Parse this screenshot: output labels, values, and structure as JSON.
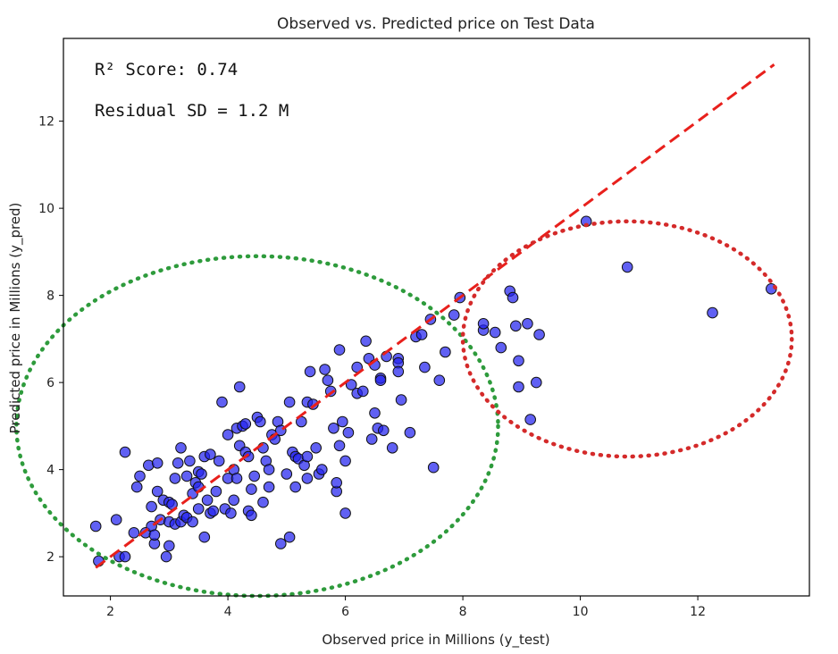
{
  "chart_data": {
    "type": "scatter",
    "title": "Observed vs. Predicted price on Test Data",
    "xlabel": "Observed price in Millions (y_test)",
    "ylabel": "Predicted price in Millions (y_pred)",
    "xlim": [
      1.2,
      13.9
    ],
    "ylim": [
      1.1,
      13.9
    ],
    "xticks": [
      2,
      4,
      6,
      8,
      10,
      12
    ],
    "yticks": [
      2,
      4,
      6,
      8,
      10,
      12
    ],
    "grid": false,
    "annotations": {
      "r2": "R² Score: 0.74",
      "residual": "Residual SD = 1.2 M"
    },
    "reference_line": {
      "name": "y = x",
      "style": "dashed",
      "color": "#e8201c",
      "x": [
        1.75,
        13.3
      ],
      "y": [
        1.75,
        13.3
      ]
    },
    "circles": [
      {
        "name": "cluster-circle",
        "color": "#2e9b3c",
        "center": [
          4.5,
          5.0
        ],
        "rx": 4.1,
        "ry": 3.9
      },
      {
        "name": "outlier-circle",
        "color": "#d42a2a",
        "center": [
          10.8,
          7.0
        ],
        "rx": 2.8,
        "ry": 2.7
      }
    ],
    "series": [
      {
        "name": "predictions",
        "color": "#2222ee",
        "points": [
          [
            1.75,
            2.7
          ],
          [
            1.8,
            1.9
          ],
          [
            2.1,
            2.85
          ],
          [
            2.15,
            2.0
          ],
          [
            2.25,
            2.0
          ],
          [
            2.25,
            4.4
          ],
          [
            2.4,
            2.55
          ],
          [
            2.45,
            3.6
          ],
          [
            2.5,
            3.85
          ],
          [
            2.6,
            2.55
          ],
          [
            2.65,
            4.1
          ],
          [
            2.7,
            2.7
          ],
          [
            2.7,
            3.15
          ],
          [
            2.75,
            2.3
          ],
          [
            2.75,
            2.5
          ],
          [
            2.8,
            3.5
          ],
          [
            2.8,
            4.15
          ],
          [
            2.85,
            2.85
          ],
          [
            2.9,
            3.3
          ],
          [
            2.95,
            2.0
          ],
          [
            3.0,
            2.25
          ],
          [
            3.0,
            2.8
          ],
          [
            3.0,
            3.25
          ],
          [
            3.05,
            3.2
          ],
          [
            3.1,
            2.75
          ],
          [
            3.1,
            3.8
          ],
          [
            3.15,
            4.15
          ],
          [
            3.2,
            4.5
          ],
          [
            3.2,
            2.8
          ],
          [
            3.25,
            2.95
          ],
          [
            3.3,
            3.85
          ],
          [
            3.3,
            2.9
          ],
          [
            3.35,
            4.2
          ],
          [
            3.4,
            3.45
          ],
          [
            3.4,
            2.8
          ],
          [
            3.45,
            3.7
          ],
          [
            3.5,
            3.6
          ],
          [
            3.5,
            3.95
          ],
          [
            3.5,
            3.1
          ],
          [
            3.55,
            3.9
          ],
          [
            3.6,
            4.3
          ],
          [
            3.6,
            2.45
          ],
          [
            3.65,
            3.3
          ],
          [
            3.7,
            4.35
          ],
          [
            3.7,
            3.0
          ],
          [
            3.75,
            3.05
          ],
          [
            3.8,
            3.5
          ],
          [
            3.85,
            4.2
          ],
          [
            3.9,
            5.55
          ],
          [
            3.95,
            3.1
          ],
          [
            4.0,
            3.8
          ],
          [
            4.0,
            4.8
          ],
          [
            4.05,
            3.0
          ],
          [
            4.1,
            3.3
          ],
          [
            4.1,
            4.0
          ],
          [
            4.15,
            4.95
          ],
          [
            4.15,
            3.8
          ],
          [
            4.2,
            4.55
          ],
          [
            4.2,
            5.9
          ],
          [
            4.25,
            5.0
          ],
          [
            4.3,
            4.4
          ],
          [
            4.3,
            5.05
          ],
          [
            4.35,
            4.3
          ],
          [
            4.35,
            3.05
          ],
          [
            4.4,
            3.55
          ],
          [
            4.4,
            2.95
          ],
          [
            4.45,
            3.85
          ],
          [
            4.5,
            5.2
          ],
          [
            4.55,
            5.1
          ],
          [
            4.6,
            4.5
          ],
          [
            4.6,
            3.25
          ],
          [
            4.65,
            4.2
          ],
          [
            4.7,
            4.0
          ],
          [
            4.7,
            3.6
          ],
          [
            4.75,
            4.8
          ],
          [
            4.8,
            4.7
          ],
          [
            4.85,
            5.1
          ],
          [
            4.9,
            2.3
          ],
          [
            4.9,
            4.9
          ],
          [
            5.0,
            3.9
          ],
          [
            5.05,
            2.45
          ],
          [
            5.05,
            5.55
          ],
          [
            5.1,
            4.4
          ],
          [
            5.15,
            3.6
          ],
          [
            5.15,
            4.3
          ],
          [
            5.2,
            4.25
          ],
          [
            5.25,
            5.1
          ],
          [
            5.3,
            4.1
          ],
          [
            5.35,
            4.3
          ],
          [
            5.35,
            3.8
          ],
          [
            5.35,
            5.55
          ],
          [
            5.4,
            6.25
          ],
          [
            5.45,
            5.5
          ],
          [
            5.5,
            4.5
          ],
          [
            5.55,
            3.9
          ],
          [
            5.6,
            4.0
          ],
          [
            5.65,
            6.3
          ],
          [
            5.7,
            6.05
          ],
          [
            5.75,
            5.8
          ],
          [
            5.8,
            4.95
          ],
          [
            5.85,
            3.5
          ],
          [
            5.85,
            3.7
          ],
          [
            5.9,
            4.55
          ],
          [
            5.9,
            6.75
          ],
          [
            5.95,
            5.1
          ],
          [
            6.0,
            3.0
          ],
          [
            6.0,
            4.2
          ],
          [
            6.05,
            4.85
          ],
          [
            6.1,
            5.95
          ],
          [
            6.2,
            6.35
          ],
          [
            6.2,
            5.75
          ],
          [
            6.3,
            5.8
          ],
          [
            6.35,
            6.95
          ],
          [
            6.4,
            6.55
          ],
          [
            6.45,
            4.7
          ],
          [
            6.5,
            5.3
          ],
          [
            6.5,
            6.4
          ],
          [
            6.55,
            4.95
          ],
          [
            6.6,
            6.1
          ],
          [
            6.6,
            6.05
          ],
          [
            6.65,
            4.9
          ],
          [
            6.7,
            6.6
          ],
          [
            6.8,
            4.5
          ],
          [
            6.9,
            6.55
          ],
          [
            6.9,
            6.45
          ],
          [
            6.9,
            6.25
          ],
          [
            6.95,
            5.6
          ],
          [
            7.1,
            4.85
          ],
          [
            7.2,
            7.05
          ],
          [
            7.3,
            7.1
          ],
          [
            7.35,
            6.35
          ],
          [
            7.45,
            7.45
          ],
          [
            7.5,
            4.05
          ],
          [
            7.6,
            6.05
          ],
          [
            7.7,
            6.7
          ],
          [
            7.85,
            7.55
          ],
          [
            7.95,
            7.95
          ],
          [
            8.35,
            7.2
          ],
          [
            8.35,
            7.35
          ],
          [
            8.55,
            7.15
          ],
          [
            8.65,
            6.8
          ],
          [
            8.8,
            8.1
          ],
          [
            8.85,
            7.95
          ],
          [
            8.9,
            7.3
          ],
          [
            8.95,
            5.9
          ],
          [
            8.95,
            6.5
          ],
          [
            9.1,
            7.35
          ],
          [
            9.15,
            5.15
          ],
          [
            9.25,
            6.0
          ],
          [
            9.3,
            7.1
          ],
          [
            10.1,
            9.7
          ],
          [
            10.8,
            8.65
          ],
          [
            12.25,
            7.6
          ],
          [
            13.25,
            8.15
          ]
        ]
      }
    ]
  }
}
